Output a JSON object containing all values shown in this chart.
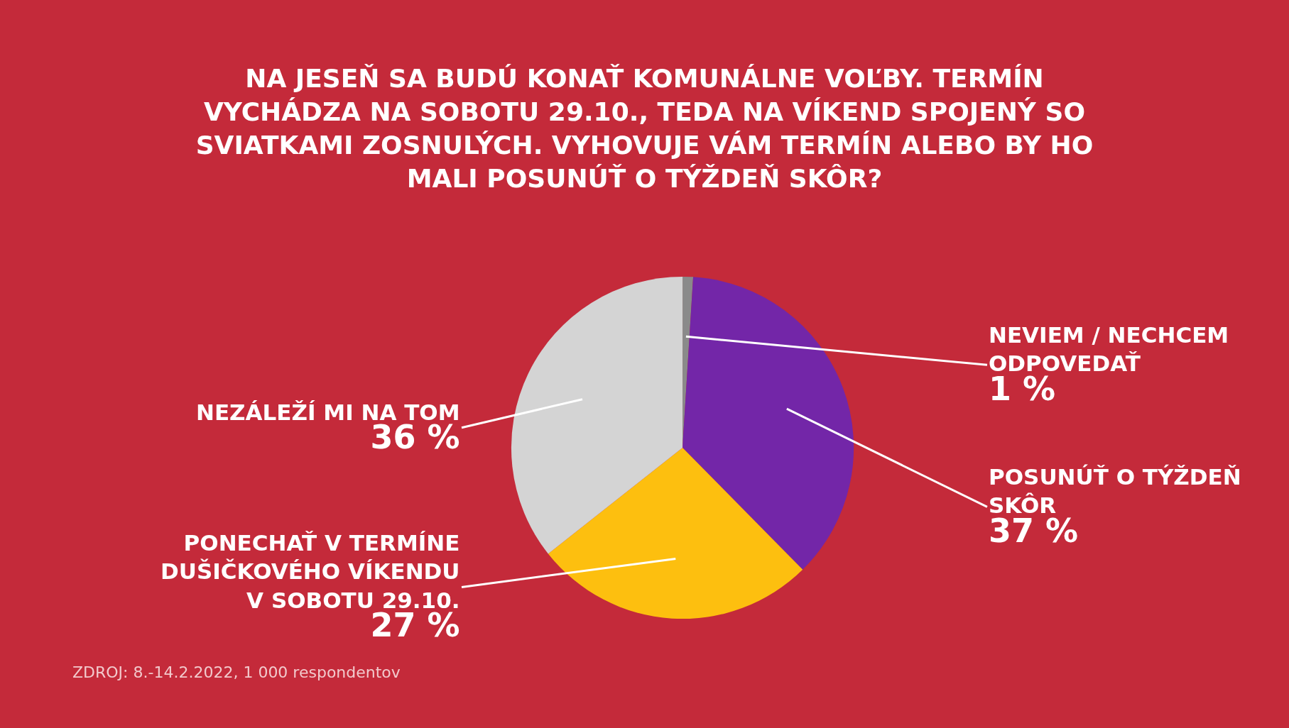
{
  "chart_data": {
    "type": "pie",
    "title": "NA JESEŇ SA BUDÚ KONAŤ KOMUNÁLNE VOĽBY. TERMÍN VYCHÁDZA NA SOBOTU 29.10., TEDA NA VÍKEND SPOJENÝ SO SVIATKAMI ZOSNULÝCH. VYHOVUJE VÁM TERMÍN ALEBO BY HO MALI POSUNÚŤ O TÝŽDEŇ SKÔR?",
    "categories": [
      "NEVIEM / NECHCEM ODPOVEDAŤ",
      "POSUNÚŤ O TÝŽDEŇ SKÔR",
      "PONECHAŤ V TERMÍNE DUŠIČKOVÉHO VÍKENDU V SOBOTU 29.10.",
      "NEZÁLEŽÍ MI NA TOM"
    ],
    "values": [
      1,
      37,
      27,
      36
    ],
    "value_labels": [
      "1 %",
      "37 %",
      "27 %",
      "36 %"
    ],
    "colors": [
      "#8a8a8a",
      "#7326a8",
      "#fdbf0f",
      "#d4d4d4"
    ],
    "annotations": [
      "ZDROJ: 8.-14.2.2022, 1 000 respondentov"
    ],
    "legend": false
  }
}
